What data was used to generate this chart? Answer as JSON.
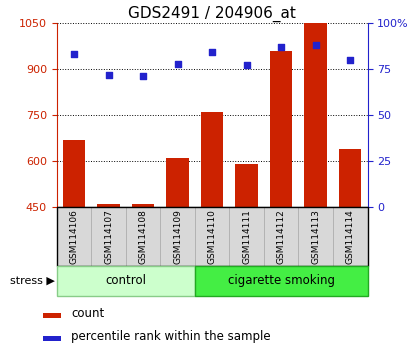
{
  "title": "GDS2491 / 204906_at",
  "samples": [
    "GSM114106",
    "GSM114107",
    "GSM114108",
    "GSM114109",
    "GSM114110",
    "GSM114111",
    "GSM114112",
    "GSM114113",
    "GSM114114"
  ],
  "counts": [
    670,
    460,
    460,
    610,
    760,
    590,
    960,
    1050,
    640
  ],
  "percentiles": [
    83,
    72,
    71,
    78,
    84,
    77,
    87,
    88,
    80
  ],
  "ymin": 450,
  "ymax": 1050,
  "yticks": [
    450,
    600,
    750,
    900,
    1050
  ],
  "right_yticks": [
    0,
    25,
    50,
    75,
    100
  ],
  "bar_color": "#cc2200",
  "dot_color": "#2222cc",
  "groups": [
    {
      "label": "control",
      "start": 0,
      "end": 4,
      "color": "#ccffcc",
      "border": "#88cc88"
    },
    {
      "label": "cigarette smoking",
      "start": 4,
      "end": 9,
      "color": "#44ee44",
      "border": "#22aa22"
    }
  ],
  "stress_label": "stress ▶",
  "title_fontsize": 11,
  "tick_fontsize": 8,
  "legend_fontsize": 8.5,
  "bar_width": 0.65,
  "baseline": 450
}
